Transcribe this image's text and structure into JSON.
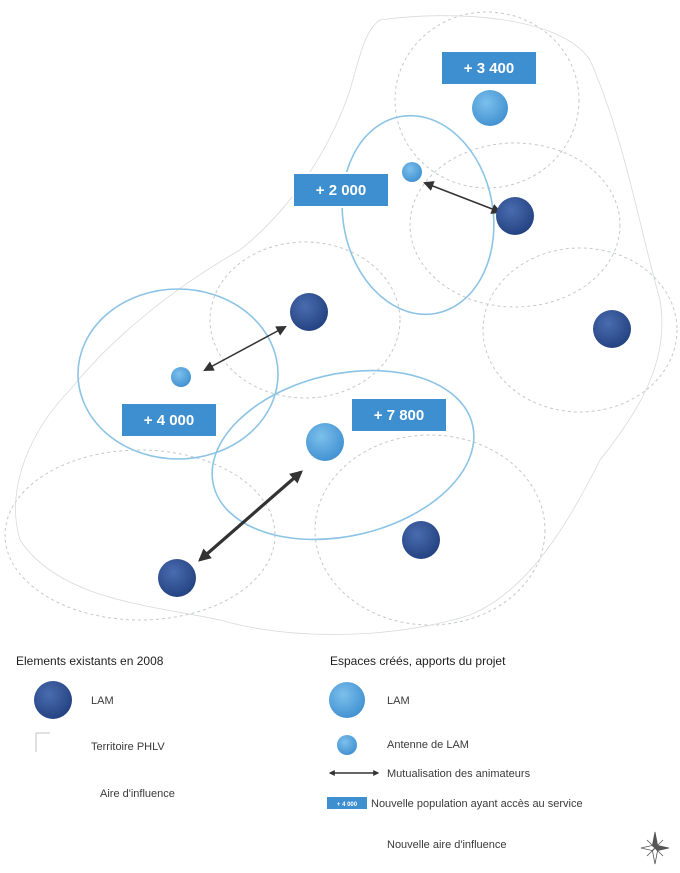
{
  "map": {
    "population_labels": [
      "+ 3 400",
      "+ 2 000",
      "+ 4 000",
      "+ 7 800"
    ]
  },
  "legend": {
    "existing": {
      "title": "Elements existants en 2008",
      "lam": "LAM",
      "territory": "Territoire PHLV",
      "influence": "Aire d'influence"
    },
    "created": {
      "title": "Espaces créés, apports du projet",
      "lam": "LAM",
      "antenna": "Antenne de LAM",
      "mutualisation": "Mutualisation des animateurs",
      "population_sample": "+ 4 000",
      "new_population": "Nouvelle population ayant accès au service",
      "new_influence": "Nouvelle aire d'influence"
    }
  },
  "colors": {
    "existing_lam": "#2e4f92",
    "new_lam": "#5aa6dc",
    "label_box": "#3e8fd0",
    "new_influence_stroke": "#8cc4e6",
    "old_influence_stroke": "#c4c9cc",
    "arrow": "#333333"
  },
  "icons": [
    "compass-rose-icon"
  ]
}
